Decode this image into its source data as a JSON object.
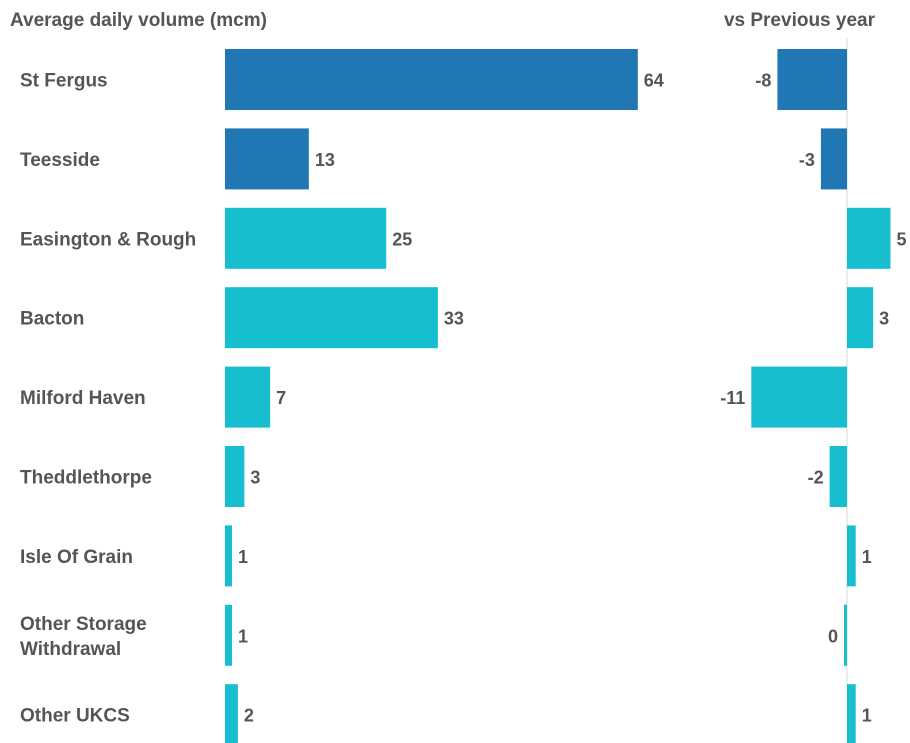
{
  "chart_data": [
    {
      "type": "bar",
      "orientation": "horizontal",
      "title": "Average daily volume (mcm)",
      "categories": [
        "St Fergus",
        "Teesside",
        "Easington & Rough",
        "Bacton",
        "Milford Haven",
        "Theddlethorpe",
        "Isle Of Grain",
        "Other Storage Withdrawal",
        "Other UKCS"
      ],
      "values": [
        64,
        13,
        25,
        33,
        7,
        3,
        1,
        1,
        2
      ],
      "colors": [
        "#2177b4",
        "#2177b4",
        "#17becf",
        "#17becf",
        "#17becf",
        "#17becf",
        "#17becf",
        "#17becf",
        "#17becf"
      ]
    },
    {
      "type": "bar",
      "orientation": "horizontal",
      "title": "vs Previous year",
      "categories": [
        "St Fergus",
        "Teesside",
        "Easington & Rough",
        "Bacton",
        "Milford Haven",
        "Theddlethorpe",
        "Isle Of Grain",
        "Other Storage Withdrawal",
        "Other UKCS"
      ],
      "values": [
        -8,
        -3,
        5,
        3,
        -11,
        -2,
        1,
        0,
        1
      ],
      "colors": [
        "#2177b4",
        "#2177b4",
        "#17becf",
        "#17becf",
        "#17becf",
        "#17becf",
        "#17becf",
        "#17becf",
        "#17becf"
      ]
    }
  ],
  "category_labels": [
    [
      "St Fergus"
    ],
    [
      "Teesside"
    ],
    [
      "Easington & Rough"
    ],
    [
      "Bacton"
    ],
    [
      "Milford Haven"
    ],
    [
      "Theddlethorpe"
    ],
    [
      "Isle Of Grain"
    ],
    [
      "Other Storage",
      "Withdrawal"
    ],
    [
      "Other UKCS"
    ]
  ],
  "colors": {
    "dark_blue": "#2177b4",
    "cyan": "#17becf",
    "text": "#555555",
    "axis": "#d9d9d9"
  }
}
